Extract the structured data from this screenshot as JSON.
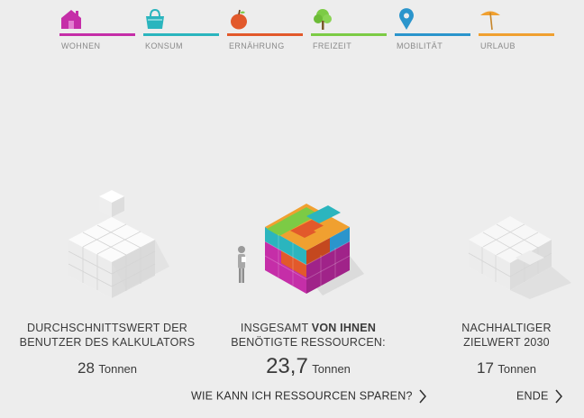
{
  "nav": {
    "tabs": [
      {
        "label": "WOHNEN",
        "color": "#c52ea8",
        "icon": "house-icon"
      },
      {
        "label": "KONSUM",
        "color": "#2bb5be",
        "icon": "shopping-bag-icon"
      },
      {
        "label": "ERNÄHRUNG",
        "color": "#e2592b",
        "icon": "apple-icon"
      },
      {
        "label": "FREIZEIT",
        "color": "#7ccb45",
        "icon": "tree-icon"
      },
      {
        "label": "MOBILITÄT",
        "color": "#2b95cc",
        "icon": "location-pin-icon"
      },
      {
        "label": "URLAUB",
        "color": "#f0a030",
        "icon": "umbrella-icon"
      }
    ]
  },
  "average": {
    "caption_line1": "DURCHSCHNITTSWERT DER",
    "caption_line2": "BENUTZER DES KALKULATORS",
    "value": "28",
    "unit": "Tonnen"
  },
  "yours": {
    "caption_pre": "INSGESAMT ",
    "caption_bold": "VON IHNEN",
    "caption_line2": "BENÖTIGTE RESSOURCEN:",
    "value": "23,7",
    "unit": "Tonnen"
  },
  "target": {
    "caption_line1": "NACHHALTIGER",
    "caption_line2": "ZIELWERT 2030",
    "value": "17",
    "unit": "Tonnen"
  },
  "actions": {
    "save_resources": "WIE KANN ICH RESSOURCEN SPAREN?",
    "end": "ENDE"
  }
}
